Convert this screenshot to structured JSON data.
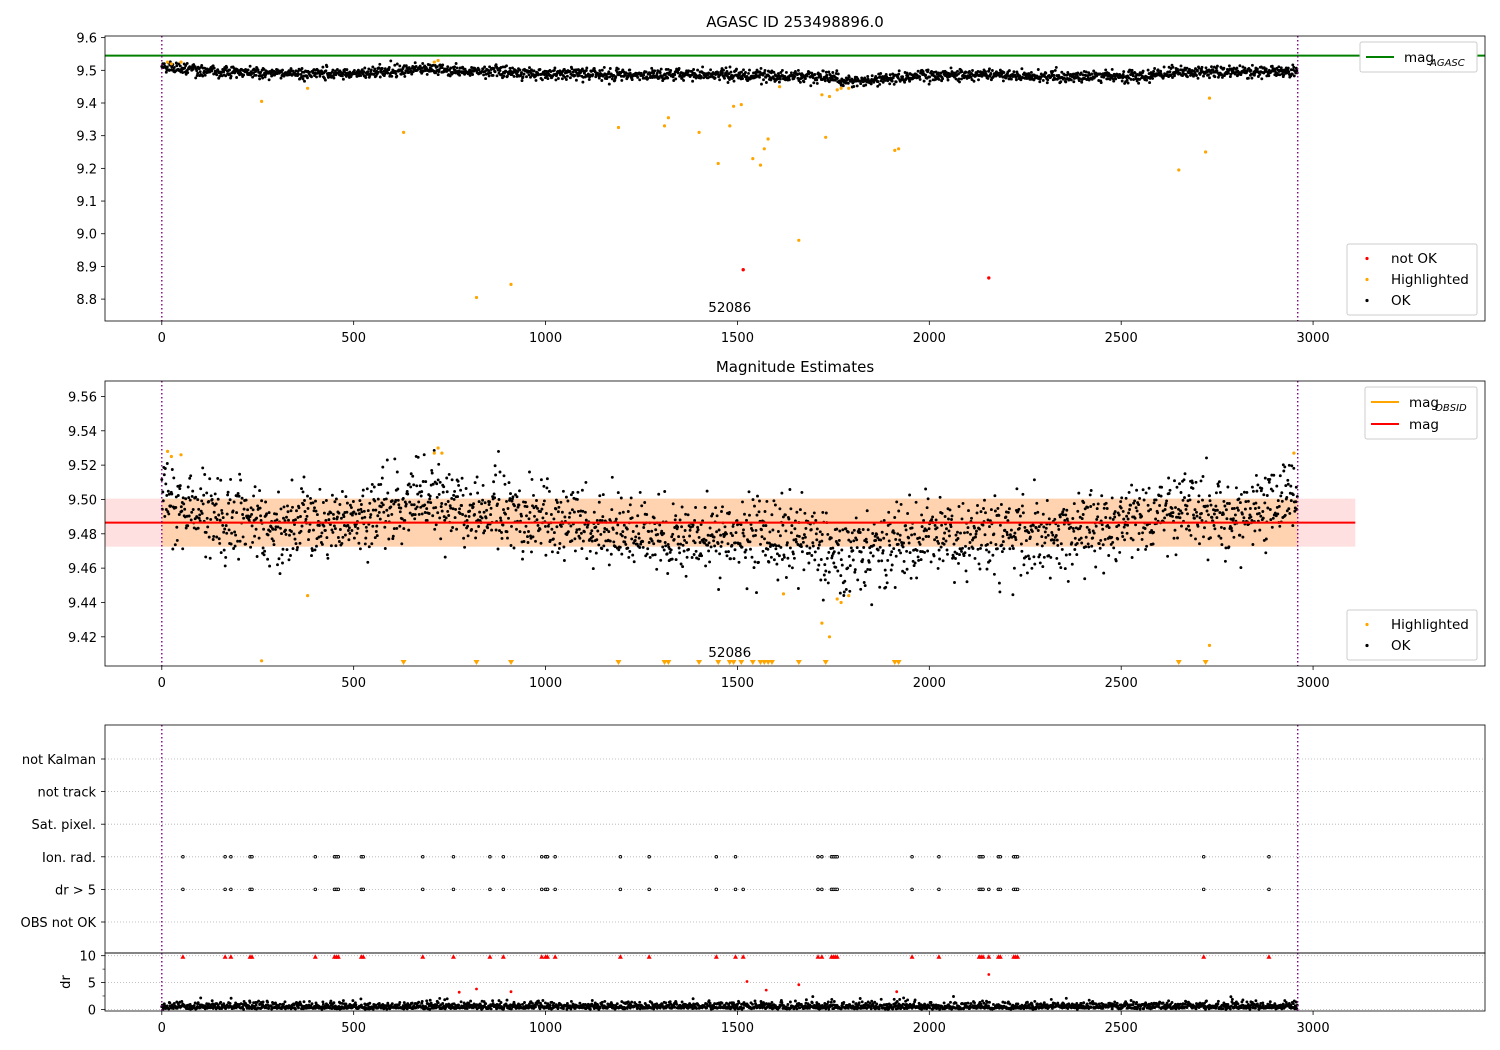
{
  "figure": {
    "title": "AGASC ID 253498896.0",
    "obsid_label": "52086"
  },
  "chart_data": [
    {
      "type": "scatter",
      "title": "AGASC ID 253498896.0",
      "x_range": [
        -148,
        3448
      ],
      "ylim": [
        8.733,
        9.605
      ],
      "x_ticks": [
        0,
        500,
        1000,
        1500,
        2000,
        2500,
        3000
      ],
      "y_ticks": [
        8.8,
        8.9,
        9.0,
        9.1,
        9.2,
        9.3,
        9.4,
        9.5,
        9.6
      ],
      "obsid_label": "52086",
      "obsid_boundaries": [
        0,
        2960
      ],
      "mag_agasc": 9.545,
      "ok_trend": {
        "x": [
          0,
          50,
          150,
          300,
          500,
          700,
          750,
          1000,
          1500,
          1750,
          1780,
          2000,
          2500,
          2650,
          2950
        ],
        "y": [
          9.51,
          9.505,
          9.495,
          9.49,
          9.49,
          9.505,
          9.5,
          9.49,
          9.485,
          9.48,
          9.465,
          9.485,
          9.48,
          9.495,
          9.495
        ]
      },
      "ok_noise": 0.009,
      "highlighted": {
        "x": [
          15,
          25,
          50,
          260,
          380,
          630,
          710,
          720,
          820,
          910,
          1190,
          1310,
          1320,
          1400,
          1450,
          1480,
          1490,
          1510,
          1540,
          1560,
          1570,
          1580,
          1610,
          1660,
          1720,
          1730,
          1740,
          1760,
          1770,
          1790,
          1910,
          1920,
          2650,
          2720,
          2730
        ],
        "y": [
          9.525,
          9.52,
          9.525,
          9.405,
          9.445,
          9.31,
          9.525,
          9.53,
          8.805,
          8.845,
          9.325,
          9.33,
          9.355,
          9.31,
          9.215,
          9.33,
          9.39,
          9.395,
          9.23,
          9.21,
          9.26,
          9.29,
          9.45,
          8.98,
          9.425,
          9.295,
          9.42,
          9.44,
          9.445,
          9.445,
          9.255,
          9.26,
          9.195,
          9.25,
          9.415
        ]
      },
      "not_ok": {
        "x": [
          1515,
          2155
        ],
        "y": [
          8.89,
          8.865
        ]
      },
      "legend_lines": [
        {
          "label": "mag_AGASC",
          "text": "mag",
          "sub": "AGASC",
          "color": "#008000"
        }
      ],
      "legend_points": [
        {
          "label": "not OK",
          "color": "#ff0000"
        },
        {
          "label": "Highlighted",
          "color": "#ffa500"
        },
        {
          "label": "OK",
          "color": "#000000"
        }
      ]
    },
    {
      "type": "scatter",
      "title": "Magnitude Estimates",
      "x_range": [
        -148,
        3448
      ],
      "ylim": [
        9.403,
        9.569
      ],
      "x_ticks": [
        0,
        500,
        1000,
        1500,
        2000,
        2500,
        3000
      ],
      "y_ticks": [
        9.42,
        9.44,
        9.46,
        9.48,
        9.5,
        9.52,
        9.54,
        9.56
      ],
      "obsid_label": "52086",
      "obsid_boundaries": [
        0,
        2960
      ],
      "mag": 9.4865,
      "mag_band": [
        9.4725,
        9.5005
      ],
      "mag_band_x": [
        -148,
        3110
      ],
      "ok_trend": {
        "x": [
          0,
          50,
          150,
          300,
          500,
          700,
          750,
          1000,
          1300,
          1500,
          1700,
          1780,
          2000,
          2300,
          2500,
          2650,
          2800,
          2950
        ],
        "y": [
          9.505,
          9.495,
          9.49,
          9.482,
          9.49,
          9.5,
          9.495,
          9.49,
          9.478,
          9.48,
          9.478,
          9.465,
          9.48,
          9.478,
          9.485,
          9.495,
          9.49,
          9.505
        ]
      },
      "ok_noise": 0.011,
      "highlighted": {
        "x": [
          15,
          25,
          50,
          260,
          380,
          710,
          720,
          730,
          1620,
          1720,
          1740,
          1760,
          1770,
          1790,
          2730,
          2950
        ],
        "y": [
          9.528,
          9.525,
          9.526,
          9.406,
          9.444,
          9.527,
          9.53,
          9.527,
          9.445,
          9.428,
          9.42,
          9.442,
          9.44,
          9.444,
          9.415,
          9.527
        ]
      },
      "below_range_x": [
        630,
        820,
        910,
        1190,
        1310,
        1320,
        1400,
        1450,
        1480,
        1490,
        1510,
        1540,
        1560,
        1570,
        1580,
        1590,
        1660,
        1730,
        1910,
        1920,
        2650,
        2720
      ],
      "legend_lines": [
        {
          "label": "mag_OBSID",
          "text": "mag",
          "sub": "OBSID",
          "color": "#ffa500"
        },
        {
          "label": "mag",
          "text": "mag",
          "sub": "",
          "color": "#ff0000"
        }
      ],
      "legend_points": [
        {
          "label": "Highlighted",
          "color": "#ffa500"
        },
        {
          "label": "OK",
          "color": "#000000"
        }
      ]
    },
    {
      "type": "scatter",
      "title": "",
      "x_range": [
        -148,
        3448
      ],
      "x_ticks": [
        0,
        500,
        1000,
        1500,
        2000,
        2500,
        3000
      ],
      "obsid_boundaries": [
        0,
        2960
      ],
      "flag_rows": [
        "not Kalman",
        "not track",
        "Sat. pixel.",
        "Ion. rad.",
        "dr > 5",
        "OBS not OK"
      ],
      "flag_events": {
        "Ion. rad.": [
          55,
          165,
          180,
          230,
          235,
          400,
          450,
          455,
          460,
          520,
          525,
          680,
          760,
          855,
          890,
          990,
          1000,
          1005,
          1025,
          1195,
          1270,
          1445,
          1495,
          1710,
          1720,
          1745,
          1750,
          1755,
          1760,
          1955,
          2025,
          2130,
          2135,
          2140,
          2180,
          2185,
          2220,
          2225,
          2230,
          2715,
          2885
        ],
        "dr > 5": [
          55,
          165,
          180,
          230,
          235,
          400,
          450,
          455,
          460,
          520,
          525,
          680,
          760,
          855,
          890,
          990,
          1000,
          1005,
          1025,
          1195,
          1270,
          1445,
          1495,
          1515,
          1710,
          1720,
          1745,
          1750,
          1755,
          1760,
          1955,
          2025,
          2130,
          2135,
          2140,
          2155,
          2180,
          2185,
          2220,
          2225,
          2230,
          2715,
          2885
        ]
      },
      "dr_ylabel": "dr",
      "dr_ticks": [
        0,
        5,
        10
      ],
      "dr_range": [
        -0.3,
        10.5
      ],
      "dr_noise_max": 1.4,
      "dr_high": {
        "x": [
          775,
          820,
          910,
          1525,
          1575,
          1660,
          1915,
          2155
        ],
        "y": [
          3.2,
          3.8,
          3.3,
          5.2,
          3.6,
          4.6,
          3.3,
          6.5
        ]
      }
    }
  ]
}
